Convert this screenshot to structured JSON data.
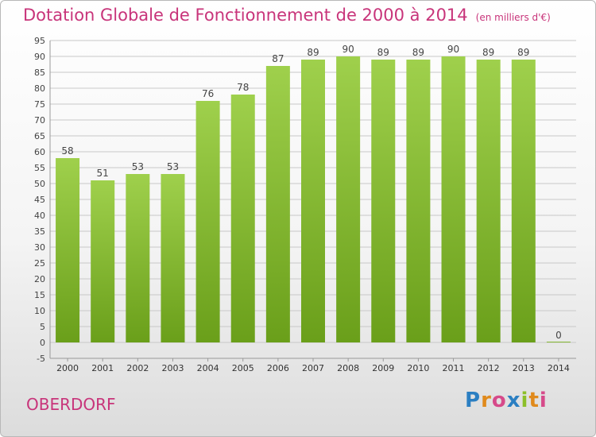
{
  "header": {
    "title": "Dotation Globale de Fonctionnement de 2000 à 2014",
    "subtitle": "(en milliers d'€)"
  },
  "footer": {
    "place": "OBERDORF",
    "logo": "Proxiti"
  },
  "colors": {
    "title": "#c8347a",
    "bar_top": "#9fd04c",
    "bar_bottom": "#6a9f1a",
    "grid": "#c8c8c8"
  },
  "chart_data": {
    "type": "bar",
    "categories": [
      "2000",
      "2001",
      "2002",
      "2003",
      "2004",
      "2005",
      "2006",
      "2007",
      "2008",
      "2009",
      "2010",
      "2011",
      "2012",
      "2013",
      "2014"
    ],
    "values": [
      58,
      51,
      53,
      53,
      76,
      78,
      87,
      89,
      90,
      89,
      89,
      90,
      89,
      89,
      0
    ],
    "ylim": [
      -5,
      95
    ],
    "ytick_step": 5,
    "grid": true
  }
}
